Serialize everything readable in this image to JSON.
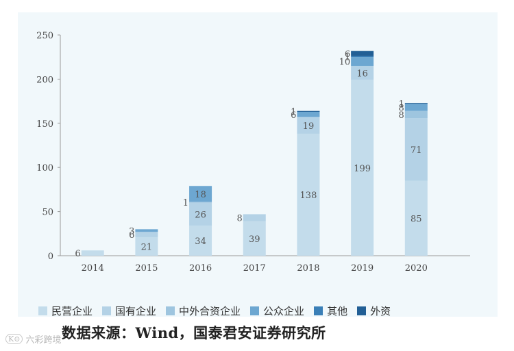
{
  "chart_data": {
    "type": "bar",
    "stacked": true,
    "categories": [
      "2014",
      "2015",
      "2016",
      "2017",
      "2018",
      "2019",
      "2020"
    ],
    "ylim": [
      0,
      250
    ],
    "yticks": [
      0,
      50,
      100,
      150,
      200,
      250
    ],
    "grid": false,
    "legend_position": "bottom",
    "series": [
      {
        "name": "民营企业",
        "color": "#c3dceb",
        "values": [
          6,
          21,
          34,
          39,
          138,
          199,
          85
        ]
      },
      {
        "name": "国有企业",
        "color": "#b4d2e6",
        "values": [
          0,
          6,
          26,
          8,
          19,
          16,
          71
        ]
      },
      {
        "name": "中外合资企业",
        "color": "#9ec5df",
        "values": [
          0,
          0,
          1,
          0,
          0,
          0,
          8
        ]
      },
      {
        "name": "公众企业",
        "color": "#6da7d1",
        "values": [
          0,
          3,
          18,
          0,
          6,
          10,
          8
        ]
      },
      {
        "name": "其他",
        "color": "#3a7fb7",
        "values": [
          0,
          0,
          0,
          0,
          0,
          1,
          0
        ]
      },
      {
        "name": "外资",
        "color": "#225f95",
        "values": [
          0,
          0,
          0,
          0,
          1,
          6,
          1
        ]
      }
    ]
  },
  "source_note": "数据来源：Wind，国泰君安证券研究所",
  "watermark": {
    "logo": "K⊙",
    "text": "六彩跨境"
  }
}
